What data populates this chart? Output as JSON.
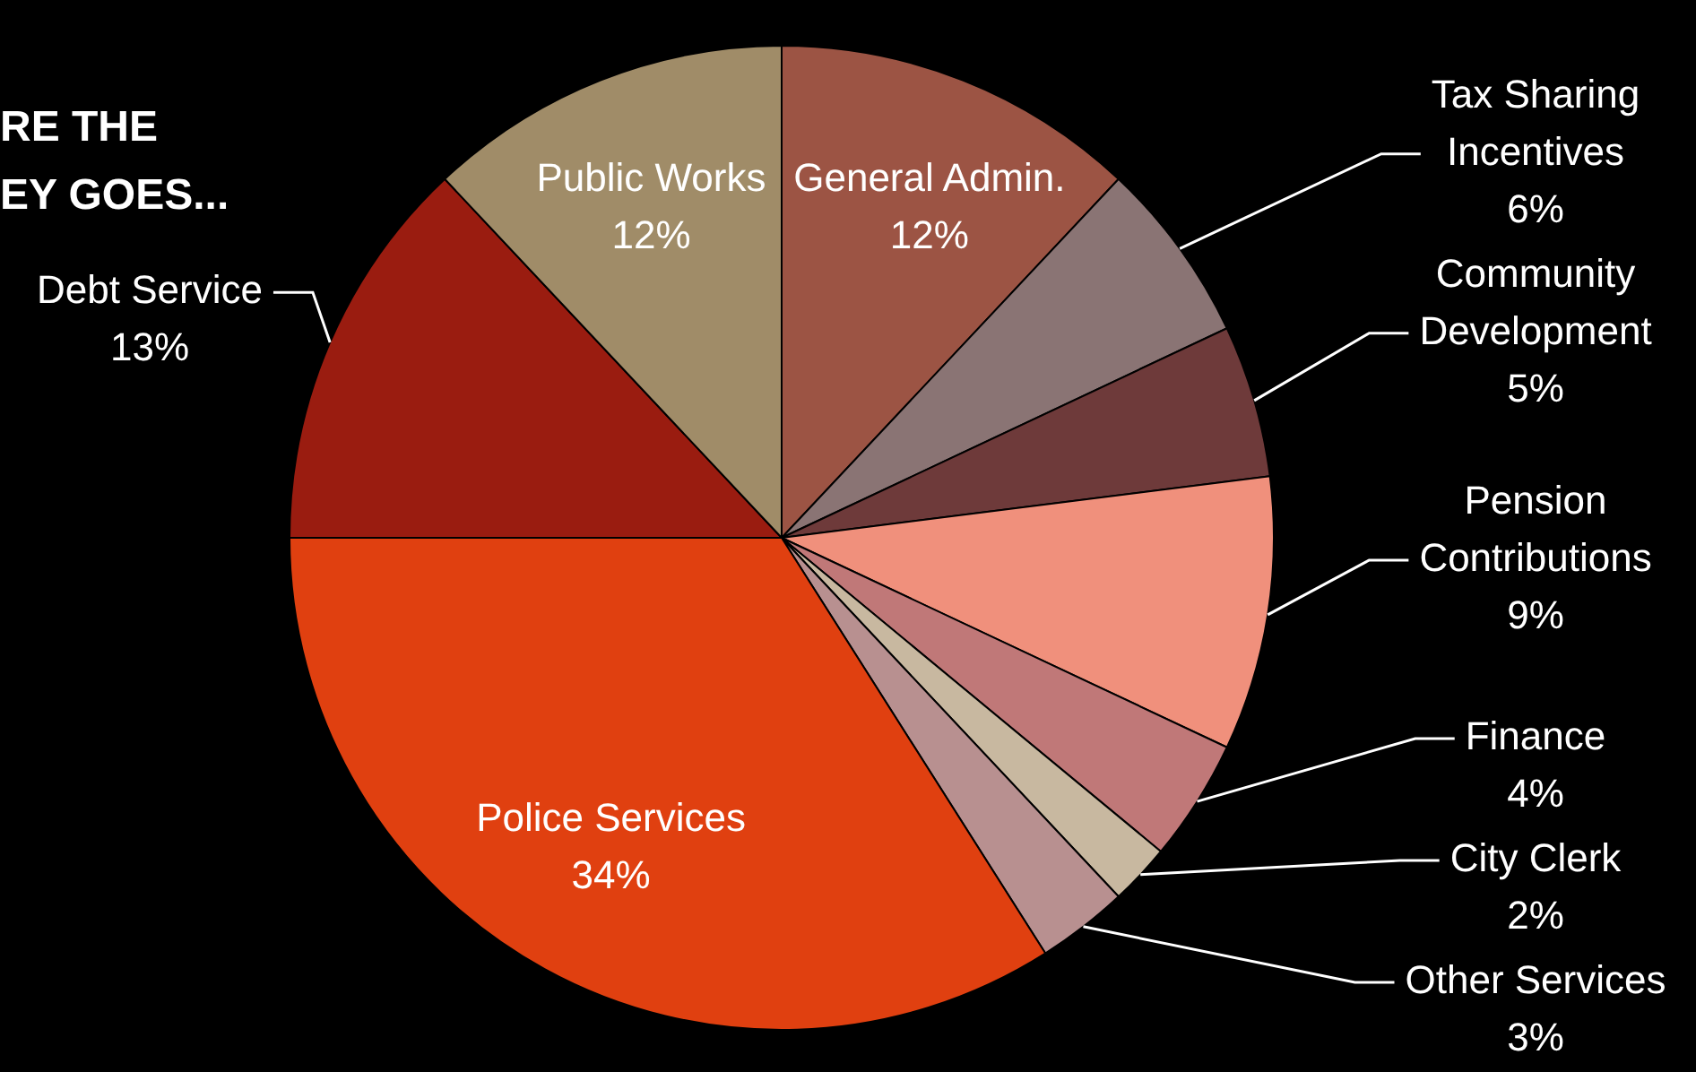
{
  "chart_data": {
    "type": "pie",
    "title": "RE THE\nEY GOES...",
    "categories": [
      "General Admin.",
      "Tax Sharing\nIncentives",
      "Community\nDevelopment",
      "Pension\nContributions",
      "Finance",
      "City Clerk",
      "Other Services",
      "Police Services",
      "Debt Service",
      "Public Works"
    ],
    "values": [
      12,
      6,
      5,
      9,
      4,
      2,
      3,
      34,
      13,
      12
    ],
    "value_labels": [
      "12%",
      "6%",
      "5%",
      "9%",
      "4%",
      "2%",
      "3%",
      "34%",
      "13%",
      "12%"
    ],
    "colors": [
      "#9c5444",
      "#8a7474",
      "#6e3a3a",
      "#f0907c",
      "#c07878",
      "#c8b8a0",
      "#b89090",
      "#e04010",
      "#9a1c10",
      "#a08c68"
    ],
    "legend": false
  }
}
